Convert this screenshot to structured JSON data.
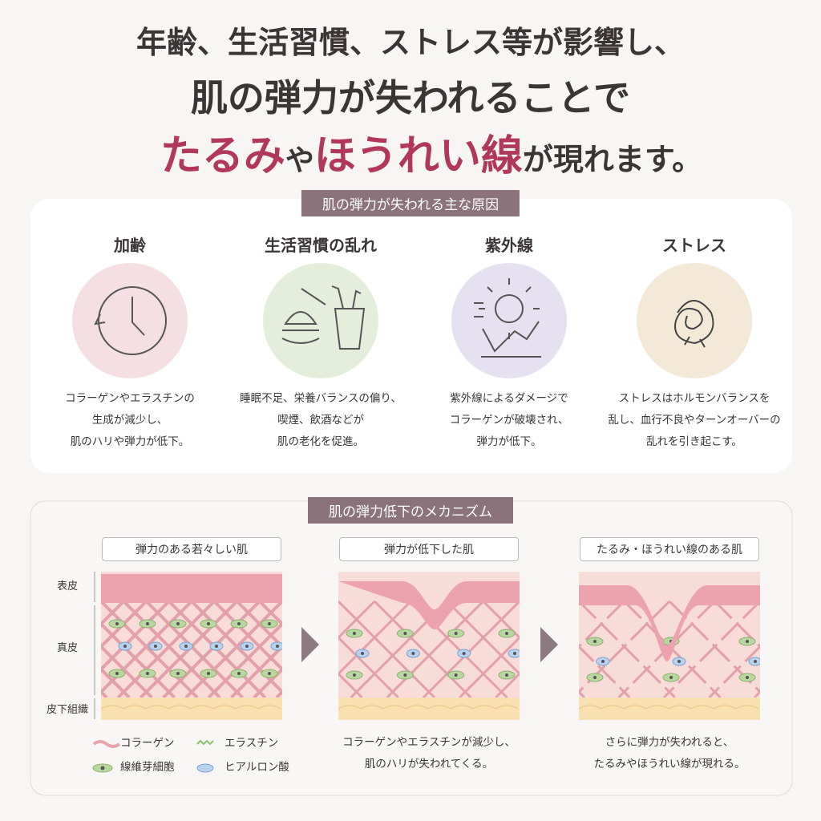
{
  "header": {
    "line1": "年齢、生活習慣、ストレス等が影響し、",
    "line2": "肌の弾力が失われることで",
    "line3": [
      "たるみ",
      "や",
      "ほうれい線",
      "が現れます。"
    ]
  },
  "causes": {
    "title": "肌の弾力が失われる主な原因",
    "items": [
      {
        "title": "加齢",
        "lines": [
          "コラーゲンやエラスチンの",
          "生成が減少し、",
          "肌のハリや弾力が低下。"
        ]
      },
      {
        "title": "生活習慣の乱れ",
        "lines": [
          "睡眠不足、栄養バランスの偏り、",
          "喫煙、飲酒などが",
          "肌の老化を促進。"
        ]
      },
      {
        "title": "紫外線",
        "lines": [
          "紫外線によるダメージで",
          "コラーゲンが破壊され、",
          "弾力が低下。"
        ]
      },
      {
        "title": "ストレス",
        "lines": [
          "ストレスはホルモンバランスを",
          "乱し、血行不良やターンオーバーの",
          "乱れを引き起こす。"
        ]
      }
    ]
  },
  "mechanism": {
    "title": "肌の弾力低下のメカニズム",
    "layers": [
      "表皮",
      "真皮",
      "皮下組織"
    ],
    "panels": [
      {
        "label": "弾力のある若々しい肌",
        "lines": []
      },
      {
        "label": "弾力が低下した肌",
        "lines": [
          "コラーゲンやエラスチンが減少し、",
          "肌のハリが失われてくる。"
        ]
      },
      {
        "label": "たるみ・ほうれい線のある肌",
        "lines": [
          "さらに弾力が失われると、",
          "たるみやほうれい線が現れる。"
        ]
      }
    ],
    "legend": [
      "コラーゲン",
      "エラスチン",
      "線維芽細胞",
      "ヒアルロン酸"
    ]
  }
}
